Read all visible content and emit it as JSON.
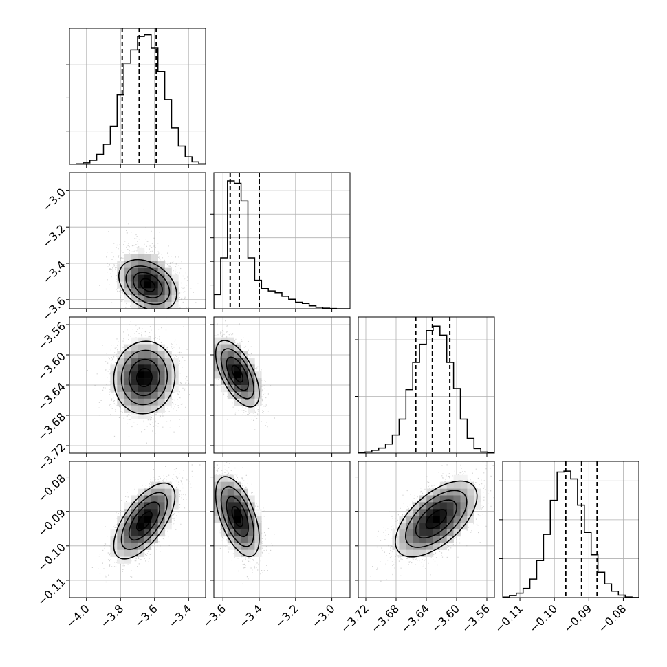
{
  "chart_data": {
    "type": "corner",
    "grid": true,
    "colors": {
      "line": "#000000",
      "grid": "#b0b0b0",
      "scatter": "#9a9a9a"
    },
    "parameters": [
      {
        "id": "p1",
        "range": [
          -4.1,
          -3.3
        ],
        "ticks": [
          -4.0,
          -3.8,
          -3.6,
          -3.4
        ],
        "tick_labels": [
          "−4.0",
          "−3.8",
          "−3.6",
          "−3.4"
        ],
        "quantiles": [
          -3.79,
          -3.69,
          -3.59
        ],
        "hist_edges": [
          -4.1,
          -4.06,
          -4.02,
          -3.98,
          -3.94,
          -3.9,
          -3.86,
          -3.82,
          -3.78,
          -3.74,
          -3.7,
          -3.66,
          -3.62,
          -3.58,
          -3.54,
          -3.5,
          -3.46,
          -3.42,
          -3.38,
          -3.34,
          -3.3
        ],
        "hist_counts": [
          1,
          3,
          9,
          25,
          60,
          120,
          230,
          420,
          610,
          690,
          770,
          780,
          700,
          560,
          390,
          220,
          110,
          45,
          15,
          3
        ],
        "hist_ylim": [
          0,
          820
        ],
        "hist_ticks": [
          200,
          400,
          600
        ]
      },
      {
        "id": "p2",
        "range": [
          -3.65,
          -2.9
        ],
        "ticks": [
          -3.6,
          -3.4,
          -3.2,
          -3.0
        ],
        "tick_labels": [
          "−3.6",
          "−3.4",
          "−3.2",
          "−3.0"
        ],
        "quantiles": [
          -3.56,
          -3.51,
          -3.4
        ],
        "hist_edges": [
          -3.65,
          -3.6125,
          -3.575,
          -3.5375,
          -3.5,
          -3.4625,
          -3.425,
          -3.3875,
          -3.35,
          -3.3125,
          -3.275,
          -3.2375,
          -3.2,
          -3.1625,
          -3.125,
          -3.0875,
          -3.05,
          -3.0125,
          -2.975,
          -2.9375,
          -2.9
        ],
        "hist_counts": [
          120,
          430,
          1080,
          1060,
          910,
          430,
          240,
          170,
          150,
          135,
          105,
          80,
          55,
          45,
          25,
          12,
          5,
          2,
          0,
          0
        ],
        "hist_ylim": [
          0,
          1150
        ],
        "hist_ticks": [
          200,
          400,
          600,
          800,
          1000
        ]
      },
      {
        "id": "p3",
        "range": [
          -3.73,
          -3.55
        ],
        "ticks": [
          -3.72,
          -3.68,
          -3.64,
          -3.6,
          -3.56
        ],
        "tick_labels": [
          "−3.72",
          "−3.68",
          "−3.64",
          "−3.60",
          "−3.56"
        ],
        "quantiles": [
          -3.654,
          -3.632,
          -3.609
        ],
        "hist_edges": [
          -3.73,
          -3.721,
          -3.712,
          -3.703,
          -3.694,
          -3.685,
          -3.676,
          -3.667,
          -3.658,
          -3.649,
          -3.64,
          -3.631,
          -3.622,
          -3.613,
          -3.604,
          -3.595,
          -3.586,
          -3.577,
          -3.568,
          -3.559,
          -3.55
        ],
        "hist_counts": [
          4,
          10,
          25,
          45,
          80,
          160,
          300,
          560,
          800,
          960,
          1080,
          1120,
          1040,
          800,
          570,
          300,
          130,
          40,
          10,
          2
        ],
        "hist_ylim": [
          0,
          1200
        ],
        "hist_ticks": [
          500,
          1000
        ]
      },
      {
        "id": "p4",
        "range": [
          -0.115,
          -0.0755
        ],
        "ticks": [
          -0.11,
          -0.1,
          -0.09,
          -0.08
        ],
        "tick_labels": [
          "−0.11",
          "−0.10",
          "−0.09",
          "−0.08"
        ],
        "quantiles": [
          -0.0967,
          -0.0921,
          -0.0876
        ],
        "hist_edges": [
          -0.115,
          -0.113025,
          -0.11105,
          -0.109075,
          -0.1071,
          -0.105125,
          -0.10315,
          -0.101175,
          -0.0992,
          -0.097225,
          -0.09525,
          -0.093275,
          -0.0913,
          -0.089325,
          -0.08735,
          -0.085375,
          -0.0834,
          -0.081425,
          -0.07945,
          -0.077475,
          -0.0755
        ],
        "hist_counts": [
          5,
          20,
          45,
          95,
          190,
          380,
          650,
          1000,
          1290,
          1300,
          1220,
          950,
          670,
          440,
          260,
          140,
          65,
          25,
          6,
          1
        ],
        "hist_ylim": [
          0,
          1400
        ],
        "hist_ticks": [
          400,
          800,
          1200
        ]
      }
    ],
    "pairs": [
      {
        "row": 1,
        "col": 0,
        "center": [
          -3.64,
          -3.52
        ],
        "sd": [
          0.085,
          0.07
        ],
        "corr": -0.35,
        "skew_y_up": 0.09
      },
      {
        "row": 2,
        "col": 0,
        "center": [
          -3.66,
          -3.63
        ],
        "sd": [
          0.09,
          0.024
        ],
        "corr": 0.05
      },
      {
        "row": 2,
        "col": 1,
        "center": [
          -3.52,
          -3.625
        ],
        "sd": [
          0.06,
          0.022
        ],
        "corr": -0.6
      },
      {
        "row": 3,
        "col": 0,
        "center": [
          -3.66,
          -0.0928
        ],
        "sd": [
          0.09,
          0.0055
        ],
        "corr": 0.65
      },
      {
        "row": 3,
        "col": 1,
        "center": [
          -3.52,
          -0.0915
        ],
        "sd": [
          0.06,
          0.0058
        ],
        "corr": -0.55
      },
      {
        "row": 3,
        "col": 2,
        "center": [
          -3.627,
          -0.0922
        ],
        "sd": [
          0.027,
          0.0055
        ],
        "corr": 0.6
      }
    ],
    "contour_levels_sigma": [
      0.5,
      1.0,
      1.5,
      2.0
    ]
  }
}
